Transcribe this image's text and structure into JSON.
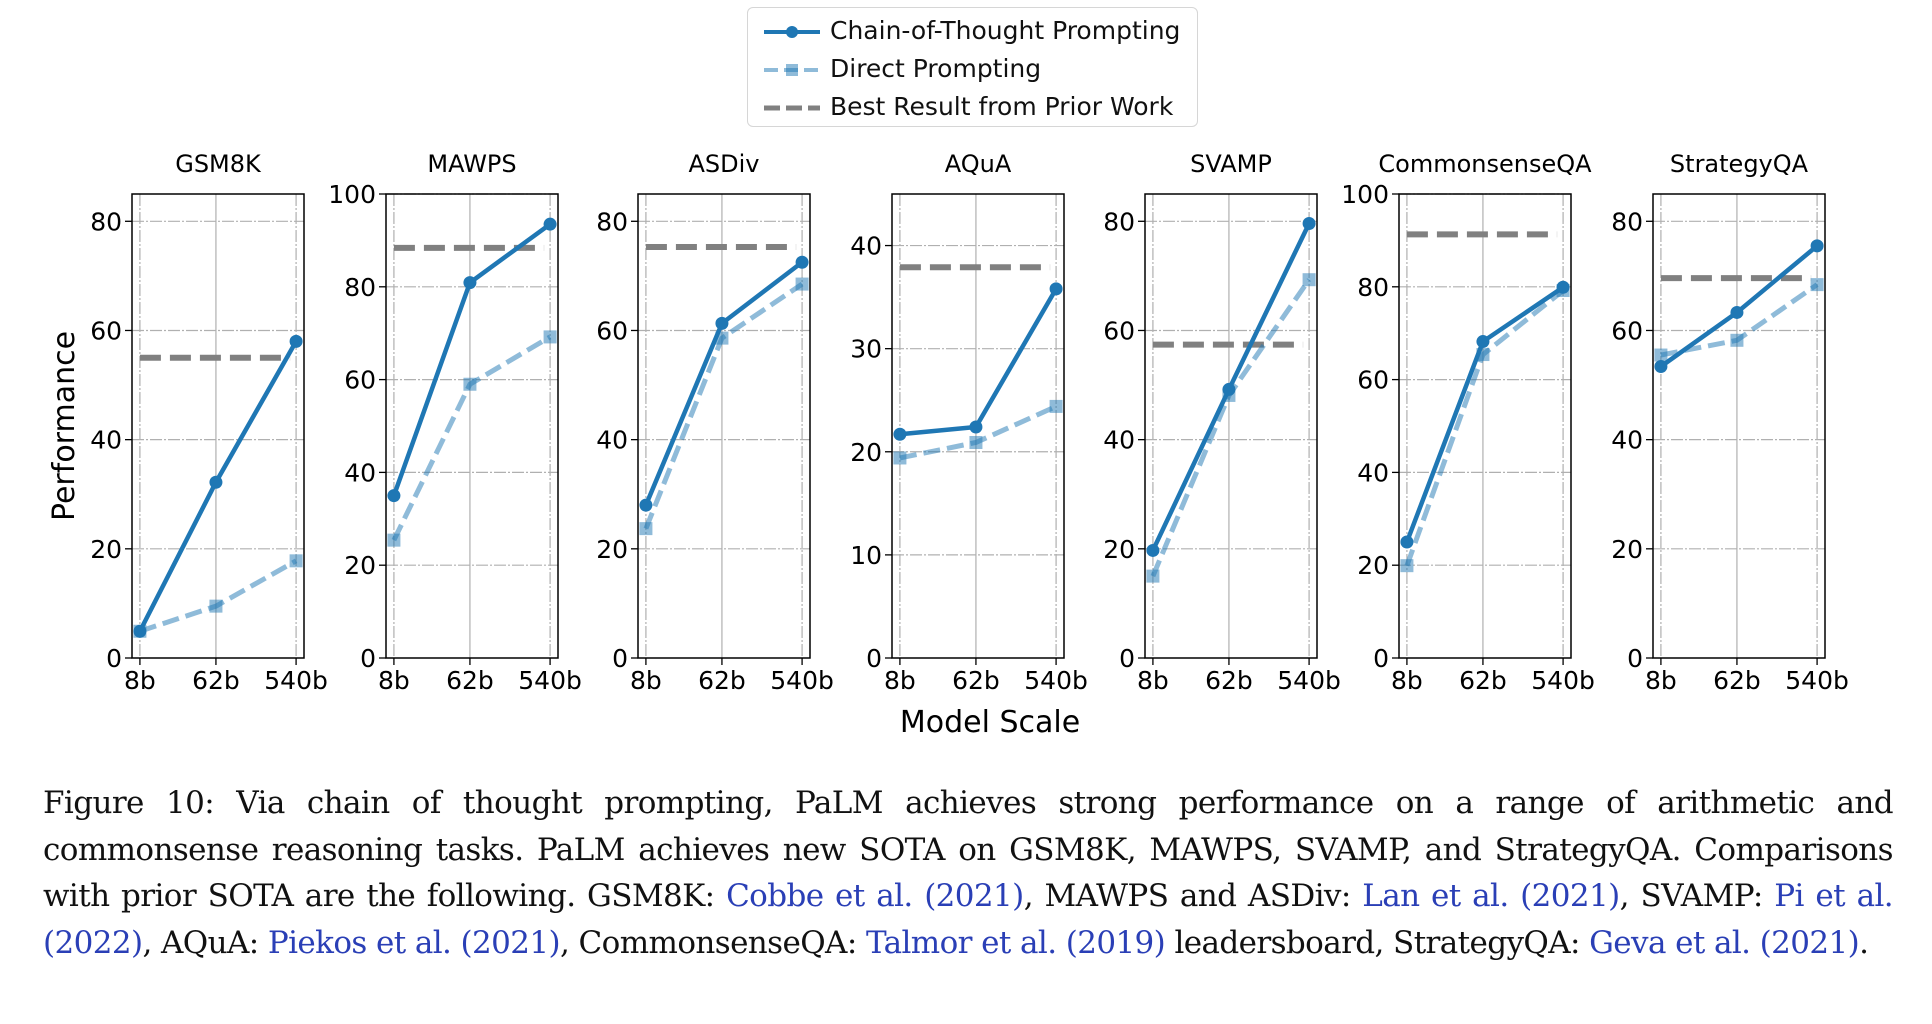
{
  "chart_data": {
    "type": "line",
    "x": [
      "8b",
      "62b",
      "540b"
    ],
    "xlabel": "Model Scale",
    "ylabel": "Performance",
    "grid": true,
    "legend_position": "top-center",
    "legend": [
      {
        "key": "cot",
        "label": "Chain-of-Thought Prompting",
        "color": "#1f77b4",
        "style": "solid",
        "marker": "circle"
      },
      {
        "key": "direct",
        "label": "Direct Prompting",
        "color": "#1f77b4",
        "opacity": 0.5,
        "style": "dashed",
        "marker": "square"
      },
      {
        "key": "prior",
        "label": "Best Result from Prior Work",
        "color": "#808080",
        "style": "dashed",
        "marker": "none"
      }
    ],
    "panels": [
      {
        "title": "GSM8K",
        "ylim": [
          0,
          85
        ],
        "yticks": [
          0,
          20,
          40,
          60,
          80
        ],
        "series": [
          {
            "name": "Chain-of-Thought Prompting",
            "values": [
              4.9,
              32.2,
              58.0
            ]
          },
          {
            "name": "Direct Prompting",
            "values": [
              4.9,
              9.5,
              17.8
            ]
          }
        ],
        "prior_best": 55.0
      },
      {
        "title": "MAWPS",
        "ylim": [
          0,
          100
        ],
        "yticks": [
          0,
          20,
          40,
          60,
          80,
          100
        ],
        "series": [
          {
            "name": "Chain-of-Thought Prompting",
            "values": [
              35.0,
              80.9,
              93.5
            ]
          },
          {
            "name": "Direct Prompting",
            "values": [
              25.4,
              59.0,
              69.2
            ]
          }
        ],
        "prior_best": 88.4
      },
      {
        "title": "ASDiv",
        "ylim": [
          0,
          85
        ],
        "yticks": [
          0,
          20,
          40,
          60,
          80
        ],
        "series": [
          {
            "name": "Chain-of-Thought Prompting",
            "values": [
              28.0,
              61.3,
              72.5
            ]
          },
          {
            "name": "Direct Prompting",
            "values": [
              23.7,
              58.6,
              68.5
            ]
          }
        ],
        "prior_best": 75.3
      },
      {
        "title": "AQuA",
        "ylim": [
          0,
          45
        ],
        "yticks": [
          0,
          10,
          20,
          30,
          40
        ],
        "series": [
          {
            "name": "Chain-of-Thought Prompting",
            "values": [
              21.7,
              22.4,
              35.8
            ]
          },
          {
            "name": "Direct Prompting",
            "values": [
              19.4,
              20.9,
              24.4
            ]
          }
        ],
        "prior_best": 37.9
      },
      {
        "title": "SVAMP",
        "ylim": [
          0,
          85
        ],
        "yticks": [
          0,
          20,
          40,
          60,
          80
        ],
        "series": [
          {
            "name": "Chain-of-Thought Prompting",
            "values": [
              19.7,
              49.2,
              79.6
            ]
          },
          {
            "name": "Direct Prompting",
            "values": [
              15.0,
              48.1,
              69.3
            ]
          }
        ],
        "prior_best": 57.4
      },
      {
        "title": "CommonsenseQA",
        "ylim": [
          0,
          100
        ],
        "yticks": [
          0,
          20,
          40,
          60,
          80,
          100
        ],
        "series": [
          {
            "name": "Chain-of-Thought Prompting",
            "values": [
              25.0,
              68.2,
              79.9
            ]
          },
          {
            "name": "Direct Prompting",
            "values": [
              19.9,
              65.4,
              79.2
            ]
          }
        ],
        "prior_best": 91.3
      },
      {
        "title": "StrategyQA",
        "ylim": [
          0,
          85
        ],
        "yticks": [
          0,
          20,
          40,
          60,
          80
        ],
        "series": [
          {
            "name": "Chain-of-Thought Prompting",
            "values": [
              53.4,
              63.3,
              75.5
            ]
          },
          {
            "name": "Direct Prompting",
            "values": [
              55.5,
              58.2,
              68.4
            ]
          }
        ],
        "prior_best": 69.6
      }
    ]
  },
  "caption": {
    "segments": [
      {
        "text": "Figure 10: Via chain of thought prompting, PaLM achieves strong performance on a range of arithmetic and commonsense reasoning tasks. PaLM achieves new SOTA on GSM8K, MAWPS, SVAMP, and StrategyQA. Comparisons with prior SOTA are the following. GSM8K: ",
        "cite": false
      },
      {
        "text": "Cobbe et al. (2021)",
        "cite": true
      },
      {
        "text": ", MAWPS and ASDiv: ",
        "cite": false
      },
      {
        "text": "Lan et al. (2021)",
        "cite": true
      },
      {
        "text": ", SVAMP: ",
        "cite": false
      },
      {
        "text": "Pi et al. (2022)",
        "cite": true
      },
      {
        "text": ", AQuA: ",
        "cite": false
      },
      {
        "text": "Piekos et al. (2021)",
        "cite": true
      },
      {
        "text": ", CommonsenseQA: ",
        "cite": false
      },
      {
        "text": "Talmor et al. (2019)",
        "cite": true
      },
      {
        "text": " leadersboard, StrategyQA: ",
        "cite": false
      },
      {
        "text": "Geva et al. (2021)",
        "cite": true
      },
      {
        "text": ".",
        "cite": false
      }
    ]
  }
}
